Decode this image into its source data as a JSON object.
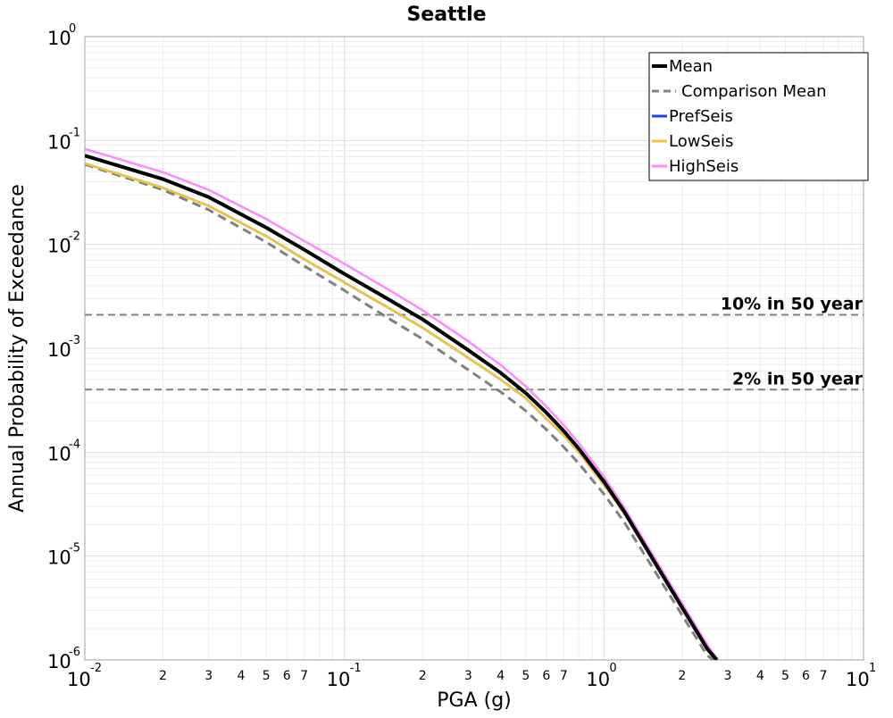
{
  "chart_data": {
    "type": "line",
    "title": "Seattle",
    "xlabel": "PGA (g)",
    "ylabel": "Annual Probability of Exceedance",
    "xscale": "log",
    "yscale": "log",
    "xlim": [
      0.01,
      10
    ],
    "ylim": [
      1e-06,
      1
    ],
    "grid": true,
    "legend_position": "top-right",
    "x_major_ticks": [
      {
        "value": 0.01,
        "base": "10",
        "exp": "-2"
      },
      {
        "value": 0.1,
        "base": "10",
        "exp": "-1"
      },
      {
        "value": 1,
        "base": "10",
        "exp": "0"
      },
      {
        "value": 10,
        "base": "10",
        "exp": "1"
      }
    ],
    "x_minor_tick_labels": [
      "2",
      "3",
      "4",
      "5",
      "6",
      "7"
    ],
    "y_major_ticks": [
      {
        "value": 1e-06,
        "base": "10",
        "exp": "-6"
      },
      {
        "value": 1e-05,
        "base": "10",
        "exp": "-5"
      },
      {
        "value": 0.0001,
        "base": "10",
        "exp": "-4"
      },
      {
        "value": 0.001,
        "base": "10",
        "exp": "-3"
      },
      {
        "value": 0.01,
        "base": "10",
        "exp": "-2"
      },
      {
        "value": 0.1,
        "base": "10",
        "exp": "-1"
      },
      {
        "value": 1,
        "base": "10",
        "exp": "0"
      }
    ],
    "series": [
      {
        "name": "Mean",
        "color": "#000000",
        "style": "solid",
        "x": [
          0.01,
          0.02,
          0.03,
          0.05,
          0.07,
          0.1,
          0.15,
          0.2,
          0.3,
          0.4,
          0.5,
          0.6,
          0.7,
          0.8,
          1.0,
          1.2,
          1.5,
          2.0,
          2.5,
          2.72
        ],
        "y": [
          0.0715,
          0.0425,
          0.0285,
          0.0145,
          0.0089,
          0.0052,
          0.0029,
          0.0019,
          0.00096,
          0.00058,
          0.00037,
          0.00024,
          0.00016,
          0.000108,
          5.2e-05,
          2.65e-05,
          1.05e-05,
          3.2e-06,
          1.28e-06,
          1e-06
        ]
      },
      {
        "name": "Comparison Mean",
        "color": "#808080",
        "style": "dashed",
        "x": [
          0.01,
          0.02,
          0.03,
          0.05,
          0.07,
          0.1,
          0.15,
          0.2,
          0.3,
          0.4,
          0.5,
          0.6,
          0.7,
          0.8,
          1.0,
          1.2,
          1.5,
          2.0,
          2.5,
          2.65
        ],
        "y": [
          0.059,
          0.0335,
          0.0215,
          0.0105,
          0.0062,
          0.0036,
          0.0019,
          0.00123,
          0.00062,
          0.00038,
          0.00025,
          0.000165,
          0.000112,
          7.8e-05,
          3.95e-05,
          2.1e-05,
          8.6e-06,
          2.7e-06,
          1.1e-06,
          1e-06
        ]
      },
      {
        "name": "PrefSeis",
        "color": "#1f3fff",
        "style": "solid",
        "x": [
          0.01,
          0.02,
          0.03,
          0.05,
          0.07,
          0.1,
          0.15,
          0.2,
          0.3,
          0.4,
          0.5,
          0.6,
          0.7,
          0.8,
          1.0,
          1.2,
          1.5,
          2.0,
          2.5,
          2.7
        ],
        "y": [
          0.06,
          0.035,
          0.0235,
          0.012,
          0.0072,
          0.0043,
          0.0024,
          0.00158,
          0.00081,
          0.0005,
          0.00033,
          0.00021,
          0.000145,
          0.0001,
          4.85e-05,
          2.55e-05,
          1.02e-05,
          3.1e-06,
          1.25e-06,
          1e-06
        ]
      },
      {
        "name": "LowSeis",
        "color": "#f2c431",
        "style": "solid",
        "x": [
          0.01,
          0.02,
          0.03,
          0.05,
          0.07,
          0.1,
          0.15,
          0.2,
          0.3,
          0.4,
          0.5,
          0.6,
          0.7,
          0.8,
          1.0,
          1.2,
          1.5,
          2.0,
          2.5,
          2.7
        ],
        "y": [
          0.06,
          0.035,
          0.0235,
          0.012,
          0.0072,
          0.0043,
          0.0024,
          0.00158,
          0.00081,
          0.0005,
          0.00033,
          0.00021,
          0.000145,
          0.0001,
          4.85e-05,
          2.55e-05,
          1.02e-05,
          3.1e-06,
          1.25e-06,
          1e-06
        ]
      },
      {
        "name": "HighSeis",
        "color": "#ff88ff",
        "style": "solid",
        "x": [
          0.01,
          0.02,
          0.03,
          0.05,
          0.07,
          0.1,
          0.15,
          0.2,
          0.3,
          0.4,
          0.5,
          0.6,
          0.7,
          0.8,
          1.0,
          1.2,
          1.5,
          2.0,
          2.5,
          2.75
        ],
        "y": [
          0.083,
          0.0495,
          0.0335,
          0.0175,
          0.0108,
          0.0065,
          0.0036,
          0.00232,
          0.00117,
          0.00069,
          0.00043,
          0.000275,
          0.000182,
          0.000122,
          5.8e-05,
          2.9e-05,
          1.15e-05,
          3.5e-06,
          1.4e-06,
          1e-06
        ]
      }
    ],
    "reference_lines": [
      {
        "label": "10% in 50 year",
        "y": 0.0021,
        "color": "#808080",
        "style": "dashed"
      },
      {
        "label": "2% in 50 year",
        "y": 0.0004,
        "color": "#808080",
        "style": "dashed"
      }
    ]
  }
}
